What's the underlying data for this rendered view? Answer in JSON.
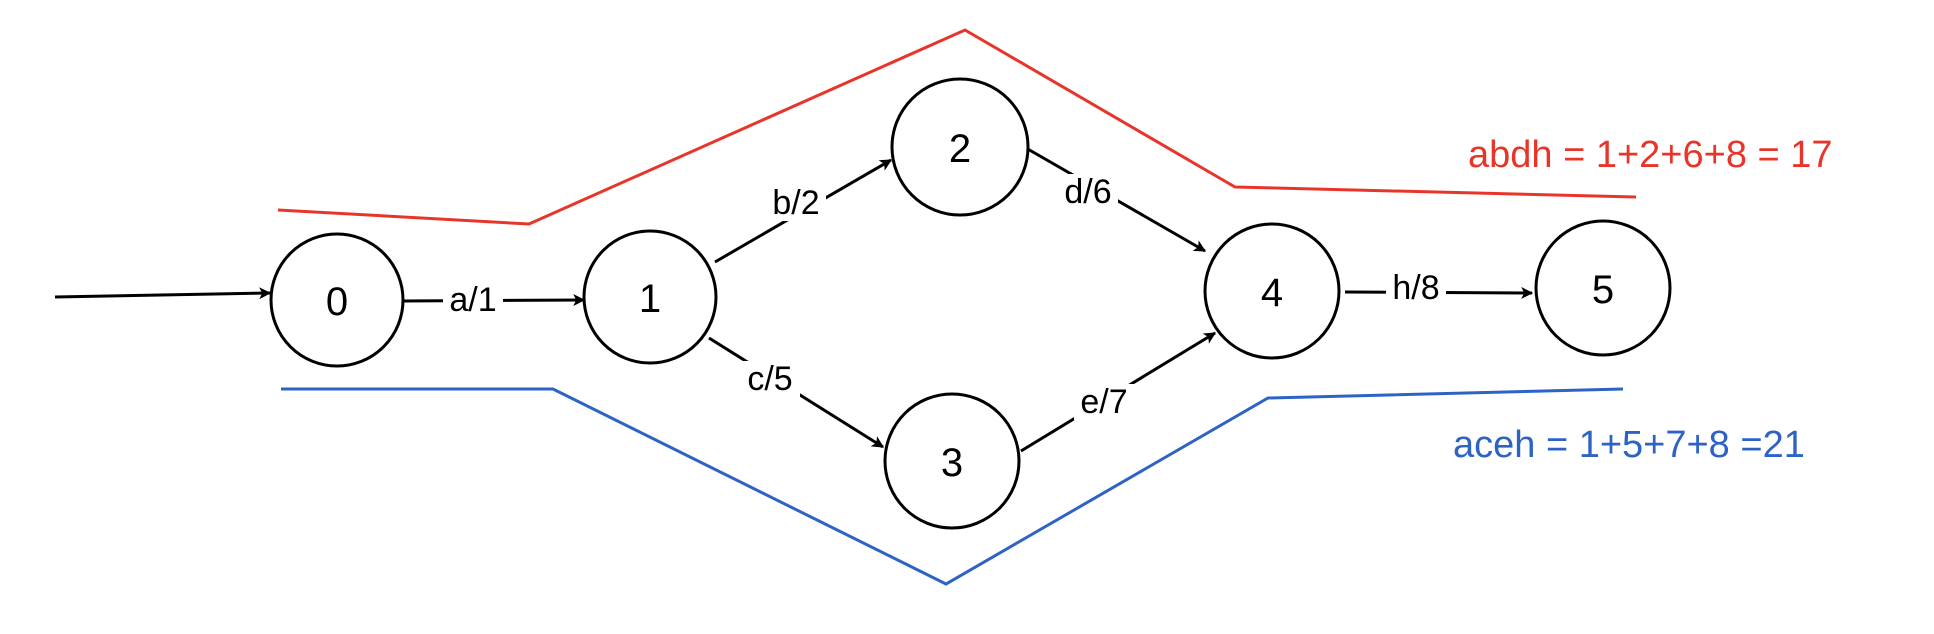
{
  "nodes": [
    "0",
    "1",
    "2",
    "3",
    "4",
    "5"
  ],
  "edges": [
    {
      "from": "0",
      "to": "1",
      "label": "a/1"
    },
    {
      "from": "1",
      "to": "2",
      "label": "b/2"
    },
    {
      "from": "1",
      "to": "3",
      "label": "c/5"
    },
    {
      "from": "2",
      "to": "4",
      "label": "d/6"
    },
    {
      "from": "3",
      "to": "4",
      "label": "e/7"
    },
    {
      "from": "4",
      "to": "5",
      "label": "h/8"
    }
  ],
  "paths": {
    "upper": {
      "text": "abdh = 1+2+6+8 = 17",
      "color": "#e8352a"
    },
    "lower": {
      "text": "aceh = 1+5+7+8 =21",
      "color": "#2e63c6"
    }
  }
}
